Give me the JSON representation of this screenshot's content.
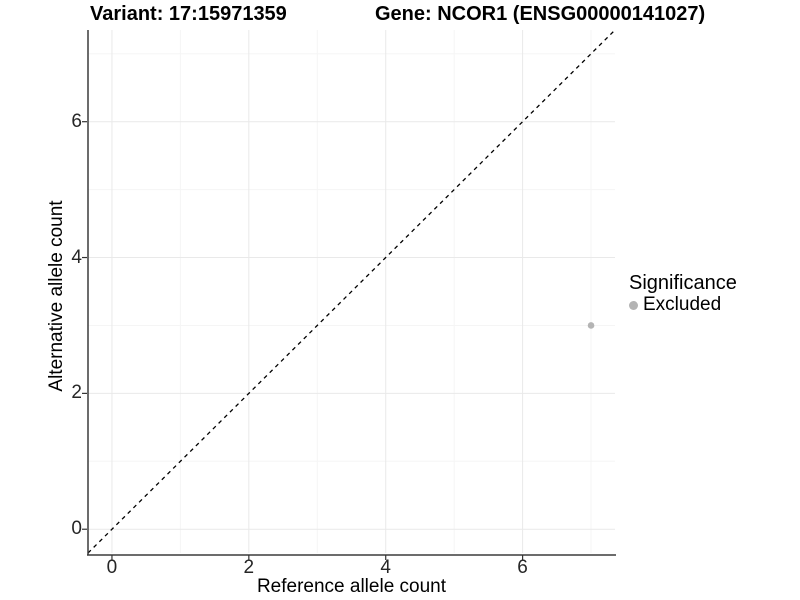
{
  "titles": {
    "variant": "Variant: 17:15971359",
    "gene": "Gene: NCOR1 (ENSG00000141027)"
  },
  "chart_data": {
    "type": "scatter",
    "xlabel": "Reference allele count",
    "ylabel": "Alternative allele count",
    "xlim": [
      -0.35,
      7.35
    ],
    "ylim": [
      -0.35,
      7.35
    ],
    "x_ticks": [
      0,
      2,
      4,
      6
    ],
    "y_ticks": [
      0,
      2,
      4,
      6
    ],
    "x_minor_ticks": [
      1,
      3,
      5,
      7
    ],
    "y_minor_ticks": [
      1,
      3,
      5,
      7
    ],
    "grid": "major+minor",
    "points": [
      {
        "x": 7,
        "y": 3,
        "series": "Excluded"
      }
    ],
    "reference_line": {
      "type": "identity",
      "equation": "y = x",
      "style": "dashed",
      "color": "#000000"
    },
    "legend": {
      "title": "Significance",
      "position": "right",
      "items": [
        {
          "label": "Excluded",
          "color": "#b4b4b4"
        }
      ]
    },
    "colors": {
      "point": "#b4b4b4",
      "grid_major": "#e9e9e9",
      "grid_minor": "#f5f5f5",
      "axis_line": "#3c3c3c",
      "tick_mark": "#333333"
    }
  }
}
